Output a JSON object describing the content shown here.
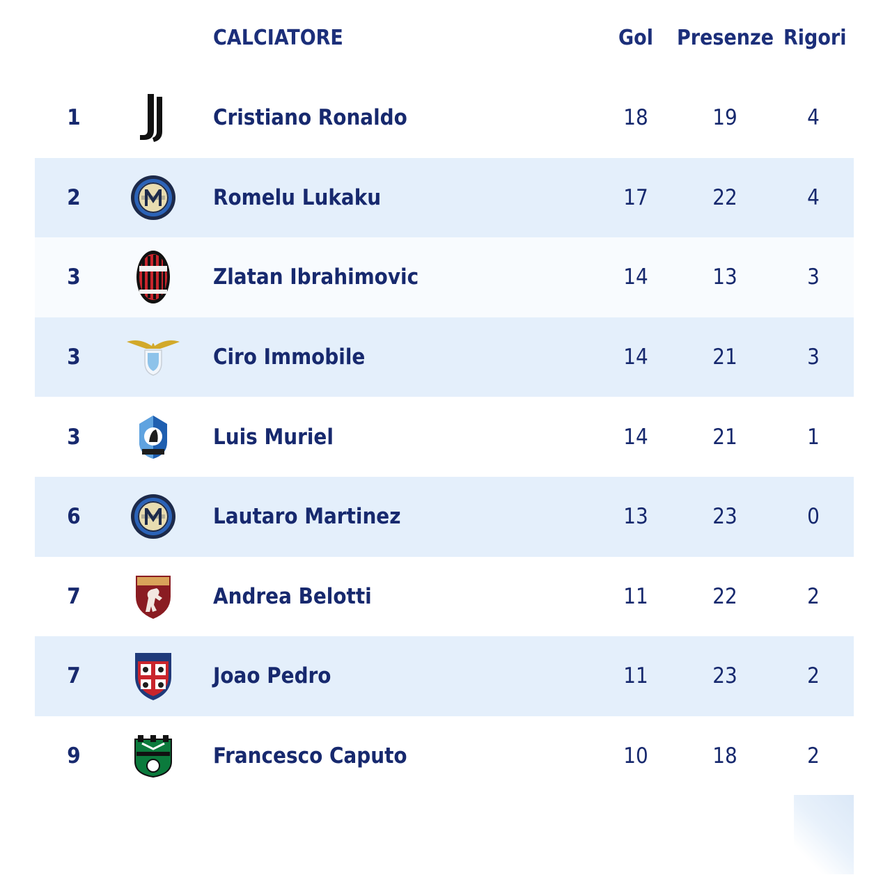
{
  "header": {
    "player": "CALCIATORE",
    "goals": "Gol",
    "appearances": "Presenze",
    "penalties": "Rigori"
  },
  "rows": [
    {
      "rank": "1",
      "club_icon": "juventus-logo-icon",
      "name": "Cristiano Ronaldo",
      "goals": "18",
      "appearances": "19",
      "penalties": "4"
    },
    {
      "rank": "2",
      "club_icon": "inter-logo-icon",
      "name": "Romelu Lukaku",
      "goals": "17",
      "appearances": "22",
      "penalties": "4"
    },
    {
      "rank": "3",
      "club_icon": "milan-logo-icon",
      "name": "Zlatan Ibrahimovic",
      "goals": "14",
      "appearances": "13",
      "penalties": "3"
    },
    {
      "rank": "3",
      "club_icon": "lazio-logo-icon",
      "name": "Ciro Immobile",
      "goals": "14",
      "appearances": "21",
      "penalties": "3"
    },
    {
      "rank": "3",
      "club_icon": "atalanta-logo-icon",
      "name": "Luis Muriel",
      "goals": "14",
      "appearances": "21",
      "penalties": "1"
    },
    {
      "rank": "6",
      "club_icon": "inter-logo-icon",
      "name": "Lautaro Martinez",
      "goals": "13",
      "appearances": "23",
      "penalties": "0"
    },
    {
      "rank": "7",
      "club_icon": "torino-logo-icon",
      "name": "Andrea Belotti",
      "goals": "11",
      "appearances": "22",
      "penalties": "2"
    },
    {
      "rank": "7",
      "club_icon": "cagliari-logo-icon",
      "name": "Joao Pedro",
      "goals": "11",
      "appearances": "23",
      "penalties": "2"
    },
    {
      "rank": "9",
      "club_icon": "sassuolo-logo-icon",
      "name": "Francesco Caputo",
      "goals": "10",
      "appearances": "18",
      "penalties": "2"
    }
  ],
  "colors": {
    "text": "#17296e",
    "row_alt": "#e4effb"
  }
}
